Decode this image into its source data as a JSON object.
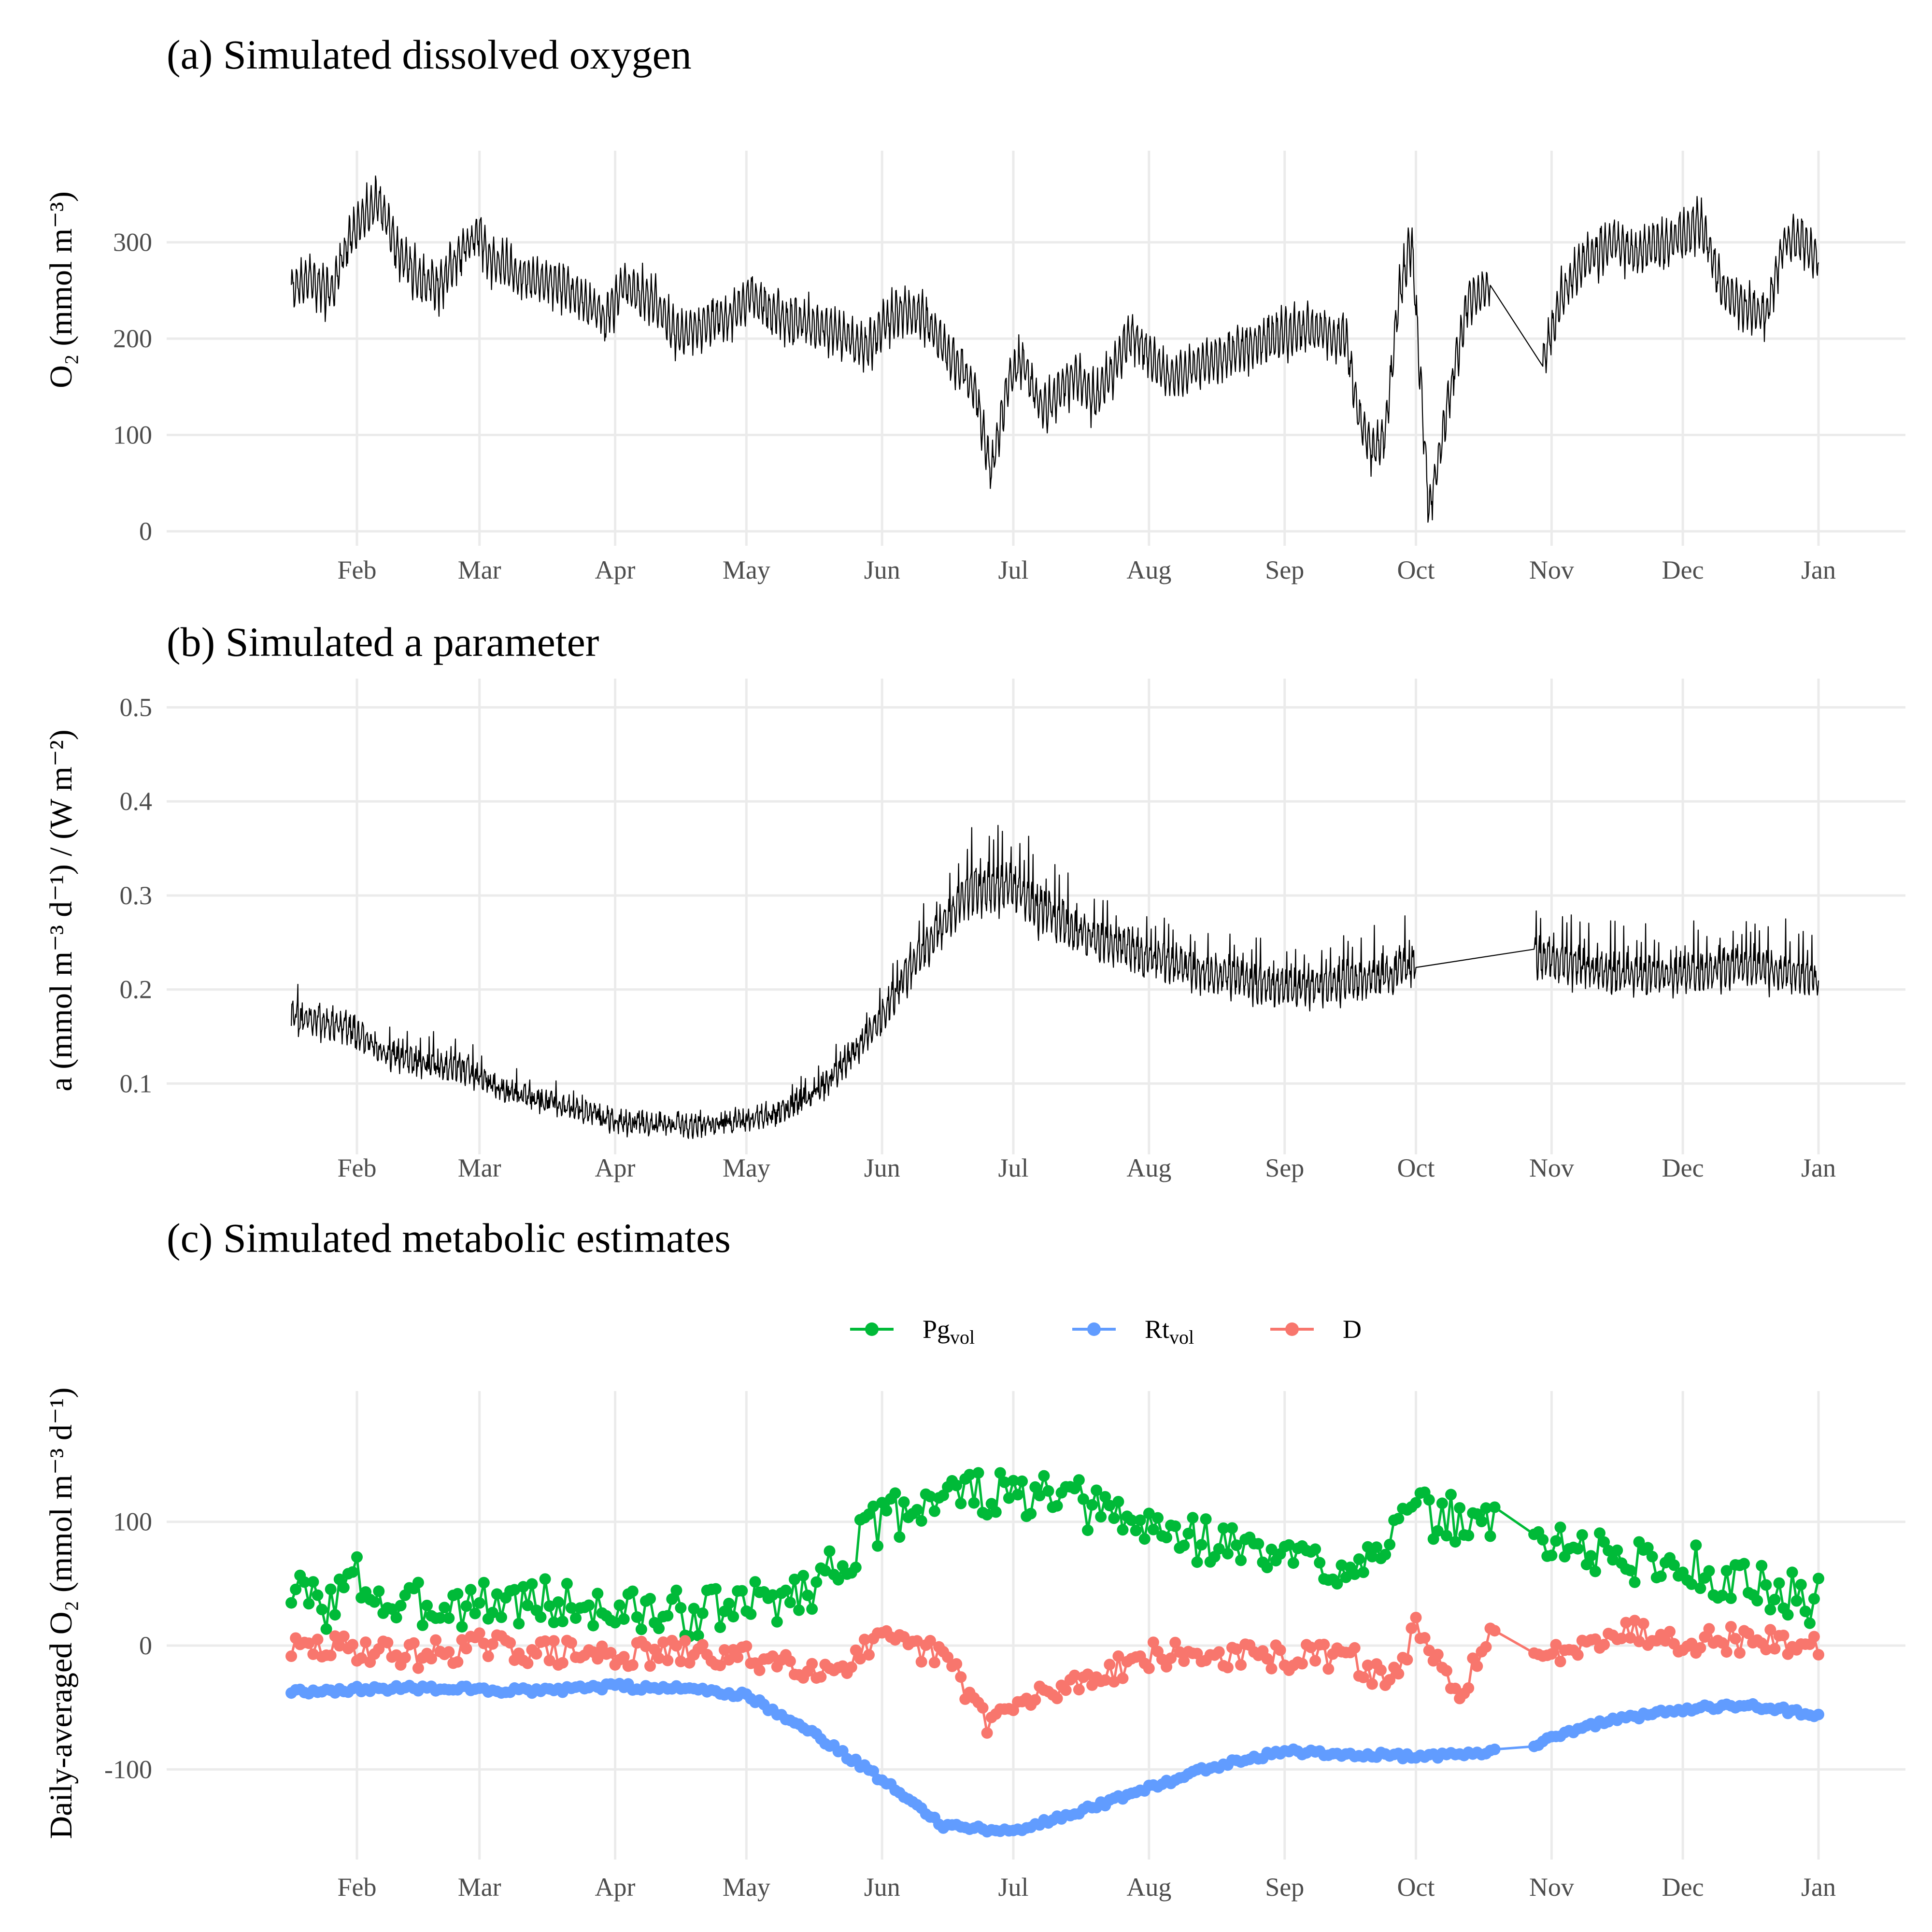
{
  "months": [
    "Feb",
    "Mar",
    "Apr",
    "May",
    "Jun",
    "Jul",
    "Aug",
    "Sep",
    "Oct",
    "Nov",
    "Dec",
    "Jan"
  ],
  "chart_data": [
    {
      "type": "line",
      "title": "(a) Simulated dissolved oxygen",
      "ylabel": "O₂ (mmol m⁻³)",
      "xlabel": "",
      "x_range": [
        "2023-01-15",
        "2024-01-01"
      ],
      "ylim": [
        -5,
        375
      ],
      "yticks": [
        0,
        100,
        200,
        300
      ],
      "grid": true,
      "color": "#000000",
      "gap": [
        "2023-10-18",
        "2023-10-30"
      ],
      "profile": [
        [
          "2023-01-17",
          250
        ],
        [
          "2023-01-21",
          262
        ],
        [
          "2023-01-26",
          248
        ],
        [
          "2023-01-30",
          300
        ],
        [
          "2023-02-03",
          330
        ],
        [
          "2023-02-06",
          345
        ],
        [
          "2023-02-10",
          295
        ],
        [
          "2023-02-15",
          262
        ],
        [
          "2023-02-20",
          255
        ],
        [
          "2023-02-25",
          292
        ],
        [
          "2023-03-01",
          310
        ],
        [
          "2023-03-03",
          285
        ],
        [
          "2023-03-10",
          265
        ],
        [
          "2023-03-20",
          255
        ],
        [
          "2023-03-30",
          222
        ],
        [
          "2023-04-03",
          255
        ],
        [
          "2023-04-10",
          240
        ],
        [
          "2023-04-15",
          205
        ],
        [
          "2023-04-20",
          212
        ],
        [
          "2023-04-28",
          225
        ],
        [
          "2023-05-02",
          245
        ],
        [
          "2023-05-10",
          220
        ],
        [
          "2023-05-20",
          210
        ],
        [
          "2023-05-28",
          190
        ],
        [
          "2023-06-05",
          230
        ],
        [
          "2023-06-10",
          225
        ],
        [
          "2023-06-16",
          185
        ],
        [
          "2023-06-22",
          150
        ],
        [
          "2023-06-26",
          60
        ],
        [
          "2023-06-30",
          160
        ],
        [
          "2023-07-03",
          175
        ],
        [
          "2023-07-08",
          125
        ],
        [
          "2023-07-15",
          165
        ],
        [
          "2023-07-20",
          135
        ],
        [
          "2023-07-28",
          205
        ],
        [
          "2023-08-05",
          160
        ],
        [
          "2023-08-15",
          175
        ],
        [
          "2023-08-25",
          195
        ],
        [
          "2023-09-05",
          210
        ],
        [
          "2023-09-15",
          200
        ],
        [
          "2023-09-18",
          120
        ],
        [
          "2023-09-21",
          80
        ],
        [
          "2023-09-24",
          100
        ],
        [
          "2023-09-27",
          240
        ],
        [
          "2023-09-30",
          300
        ],
        [
          "2023-10-04",
          20
        ],
        [
          "2023-10-09",
          150
        ],
        [
          "2023-10-13",
          240
        ],
        [
          "2023-10-18",
          255
        ],
        [
          "2023-10-30",
          175
        ],
        [
          "2023-11-03",
          240
        ],
        [
          "2023-11-08",
          280
        ],
        [
          "2023-11-15",
          300
        ],
        [
          "2023-11-20",
          290
        ],
        [
          "2023-11-28",
          300
        ],
        [
          "2023-12-05",
          320
        ],
        [
          "2023-12-10",
          250
        ],
        [
          "2023-12-20",
          220
        ],
        [
          "2023-12-24",
          300
        ],
        [
          "2023-12-28",
          305
        ],
        [
          "2024-01-01",
          280
        ]
      ]
    },
    {
      "type": "line",
      "title": "(b) Simulated a parameter",
      "ylabel": "a (mmol m⁻³ d⁻¹) / (W m⁻²)",
      "xlabel": "",
      "x_range": [
        "2023-01-15",
        "2024-01-01"
      ],
      "ylim": [
        0.035,
        0.51
      ],
      "yticks": [
        0.1,
        0.2,
        0.3,
        0.4,
        0.5
      ],
      "grid": true,
      "color": "#000000",
      "gap": [
        "2023-10-01",
        "2023-10-28"
      ],
      "profile": [
        [
          "2023-01-17",
          0.17
        ],
        [
          "2023-01-31",
          0.155
        ],
        [
          "2023-02-10",
          0.125
        ],
        [
          "2023-02-25",
          0.115
        ],
        [
          "2023-03-05",
          0.095
        ],
        [
          "2023-03-20",
          0.075
        ],
        [
          "2023-04-01",
          0.06
        ],
        [
          "2023-04-15",
          0.055
        ],
        [
          "2023-05-01",
          0.06
        ],
        [
          "2023-05-10",
          0.07
        ],
        [
          "2023-05-20",
          0.1
        ],
        [
          "2023-06-01",
          0.17
        ],
        [
          "2023-06-10",
          0.24
        ],
        [
          "2023-06-20",
          0.3
        ],
        [
          "2023-06-30",
          0.31
        ],
        [
          "2023-07-05",
          0.29
        ],
        [
          "2023-07-15",
          0.26
        ],
        [
          "2023-08-01",
          0.235
        ],
        [
          "2023-08-15",
          0.215
        ],
        [
          "2023-09-01",
          0.2
        ],
        [
          "2023-09-15",
          0.205
        ],
        [
          "2023-10-01",
          0.225
        ],
        [
          "2023-10-28",
          0.235
        ],
        [
          "2023-11-15",
          0.215
        ],
        [
          "2023-12-01",
          0.215
        ],
        [
          "2023-12-15",
          0.225
        ],
        [
          "2024-01-01",
          0.21
        ]
      ]
    },
    {
      "type": "line",
      "title": "(c) Simulated metabolic estimates",
      "ylabel": "Daily-averaged O₂ (mmol m⁻³ d⁻¹)",
      "xlabel": "",
      "x_range": [
        "2023-01-15",
        "2024-01-01"
      ],
      "ylim": [
        -165,
        190
      ],
      "yticks": [
        -100,
        0,
        100
      ],
      "grid": true,
      "legend": "top",
      "gap": [
        "2023-10-19",
        "2023-10-28"
      ],
      "series": [
        {
          "name": "Pg",
          "subscript": "vol",
          "color": "#00BA38",
          "profile": [
            [
              "2023-01-17",
              45
            ],
            [
              "2023-01-25",
              32
            ],
            [
              "2023-02-01",
              55
            ],
            [
              "2023-02-10",
              28
            ],
            [
              "2023-02-20",
              35
            ],
            [
              "2023-03-01",
              35
            ],
            [
              "2023-03-15",
              36
            ],
            [
              "2023-04-01",
              28
            ],
            [
              "2023-04-15",
              25
            ],
            [
              "2023-05-01",
              32
            ],
            [
              "2023-05-15",
              45
            ],
            [
              "2023-06-01",
              100
            ],
            [
              "2023-06-15",
              125
            ],
            [
              "2023-07-01",
              120
            ],
            [
              "2023-07-15",
              115
            ],
            [
              "2023-08-01",
              95
            ],
            [
              "2023-08-15",
              85
            ],
            [
              "2023-09-01",
              70
            ],
            [
              "2023-09-15",
              65
            ],
            [
              "2023-10-01",
              105
            ],
            [
              "2023-10-15",
              100
            ],
            [
              "2023-11-01",
              85
            ],
            [
              "2023-11-15",
              70
            ],
            [
              "2023-12-01",
              65
            ],
            [
              "2023-12-15",
              50
            ],
            [
              "2024-01-01",
              35
            ]
          ]
        },
        {
          "name": "Rt",
          "subscript": "vol",
          "color": "#619CFF",
          "profile": [
            [
              "2023-01-17",
              -37
            ],
            [
              "2023-02-15",
              -34
            ],
            [
              "2023-03-15",
              -37
            ],
            [
              "2023-04-01",
              -33
            ],
            [
              "2023-04-20",
              -35
            ],
            [
              "2023-05-01",
              -40
            ],
            [
              "2023-05-15",
              -68
            ],
            [
              "2023-06-01",
              -108
            ],
            [
              "2023-06-15",
              -145
            ],
            [
              "2023-07-01",
              -150
            ],
            [
              "2023-07-15",
              -135
            ],
            [
              "2023-08-01",
              -115
            ],
            [
              "2023-08-15",
              -98
            ],
            [
              "2023-09-01",
              -85
            ],
            [
              "2023-09-20",
              -88
            ],
            [
              "2023-10-01",
              -90
            ],
            [
              "2023-10-19",
              -85
            ],
            [
              "2023-10-28",
              -80
            ],
            [
              "2023-11-10",
              -65
            ],
            [
              "2023-11-20",
              -57
            ],
            [
              "2023-12-01",
              -52
            ],
            [
              "2023-12-15",
              -48
            ],
            [
              "2024-01-01",
              -56
            ]
          ]
        },
        {
          "name": "D",
          "subscript": "",
          "color": "#F8766D",
          "profile": [
            [
              "2023-01-17",
              -3
            ],
            [
              "2023-02-01",
              -2
            ],
            [
              "2023-02-15",
              -8
            ],
            [
              "2023-03-01",
              0
            ],
            [
              "2023-03-15",
              -5
            ],
            [
              "2023-04-01",
              -8
            ],
            [
              "2023-04-15",
              -6
            ],
            [
              "2023-05-01",
              -10
            ],
            [
              "2023-05-10",
              -12
            ],
            [
              "2023-05-20",
              -20
            ],
            [
              "2023-06-01",
              3
            ],
            [
              "2023-06-15",
              -8
            ],
            [
              "2023-06-25",
              -60
            ],
            [
              "2023-07-05",
              -45
            ],
            [
              "2023-07-15",
              -30
            ],
            [
              "2023-08-01",
              -8
            ],
            [
              "2023-08-15",
              -8
            ],
            [
              "2023-09-01",
              -10
            ],
            [
              "2023-09-15",
              -8
            ],
            [
              "2023-09-25",
              -30
            ],
            [
              "2023-10-01",
              12
            ],
            [
              "2023-10-10",
              -40
            ],
            [
              "2023-10-19",
              10
            ],
            [
              "2023-10-28",
              -15
            ],
            [
              "2023-11-10",
              8
            ],
            [
              "2023-11-20",
              12
            ],
            [
              "2023-12-01",
              5
            ],
            [
              "2023-12-15",
              5
            ],
            [
              "2024-01-01",
              0
            ]
          ]
        }
      ]
    }
  ]
}
